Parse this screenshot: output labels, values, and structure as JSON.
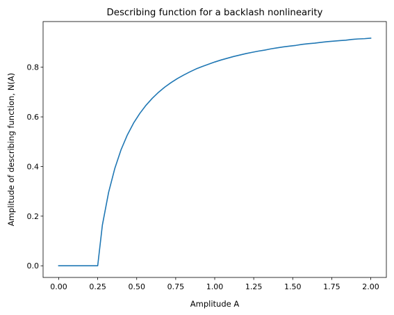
{
  "chart_data": {
    "type": "line",
    "title": "Describing function for a backlash nonlinearity",
    "xlabel": "Amplitude A",
    "ylabel": "Amplitude of describing function, N(A)",
    "xlim": [
      -0.1,
      2.1
    ],
    "ylim": [
      -0.047,
      0.984
    ],
    "xticks": [
      "0.00",
      "0.25",
      "0.50",
      "0.75",
      "1.00",
      "1.25",
      "1.50",
      "1.75",
      "2.00"
    ],
    "yticks": [
      "0.0",
      "0.2",
      "0.4",
      "0.6",
      "0.8"
    ],
    "grid": false,
    "legend": "none",
    "series": [
      {
        "color": "#1f77b4",
        "x": [
          0,
          0.04,
          0.08,
          0.12,
          0.16,
          0.2,
          0.24,
          0.25,
          0.28,
          0.32,
          0.36,
          0.4,
          0.44,
          0.48,
          0.52,
          0.56,
          0.6,
          0.64,
          0.68,
          0.72,
          0.76,
          0.8,
          0.84,
          0.88,
          0.92,
          0.96,
          1.0,
          1.04,
          1.08,
          1.12,
          1.16,
          1.2,
          1.24,
          1.28,
          1.32,
          1.36,
          1.4,
          1.44,
          1.48,
          1.52,
          1.56,
          1.6,
          1.64,
          1.68,
          1.72,
          1.76,
          1.8,
          1.84,
          1.88,
          1.92,
          1.96,
          2.0
        ],
        "y": [
          0,
          0,
          0,
          0,
          0,
          0,
          0,
          0,
          0.164,
          0.296,
          0.393,
          0.468,
          0.527,
          0.575,
          0.614,
          0.647,
          0.675,
          0.699,
          0.72,
          0.738,
          0.754,
          0.768,
          0.781,
          0.793,
          0.803,
          0.812,
          0.821,
          0.829,
          0.836,
          0.843,
          0.849,
          0.855,
          0.86,
          0.865,
          0.869,
          0.874,
          0.878,
          0.882,
          0.885,
          0.888,
          0.892,
          0.895,
          0.897,
          0.9,
          0.903,
          0.905,
          0.907,
          0.909,
          0.912,
          0.914,
          0.915,
          0.917
        ]
      }
    ]
  }
}
